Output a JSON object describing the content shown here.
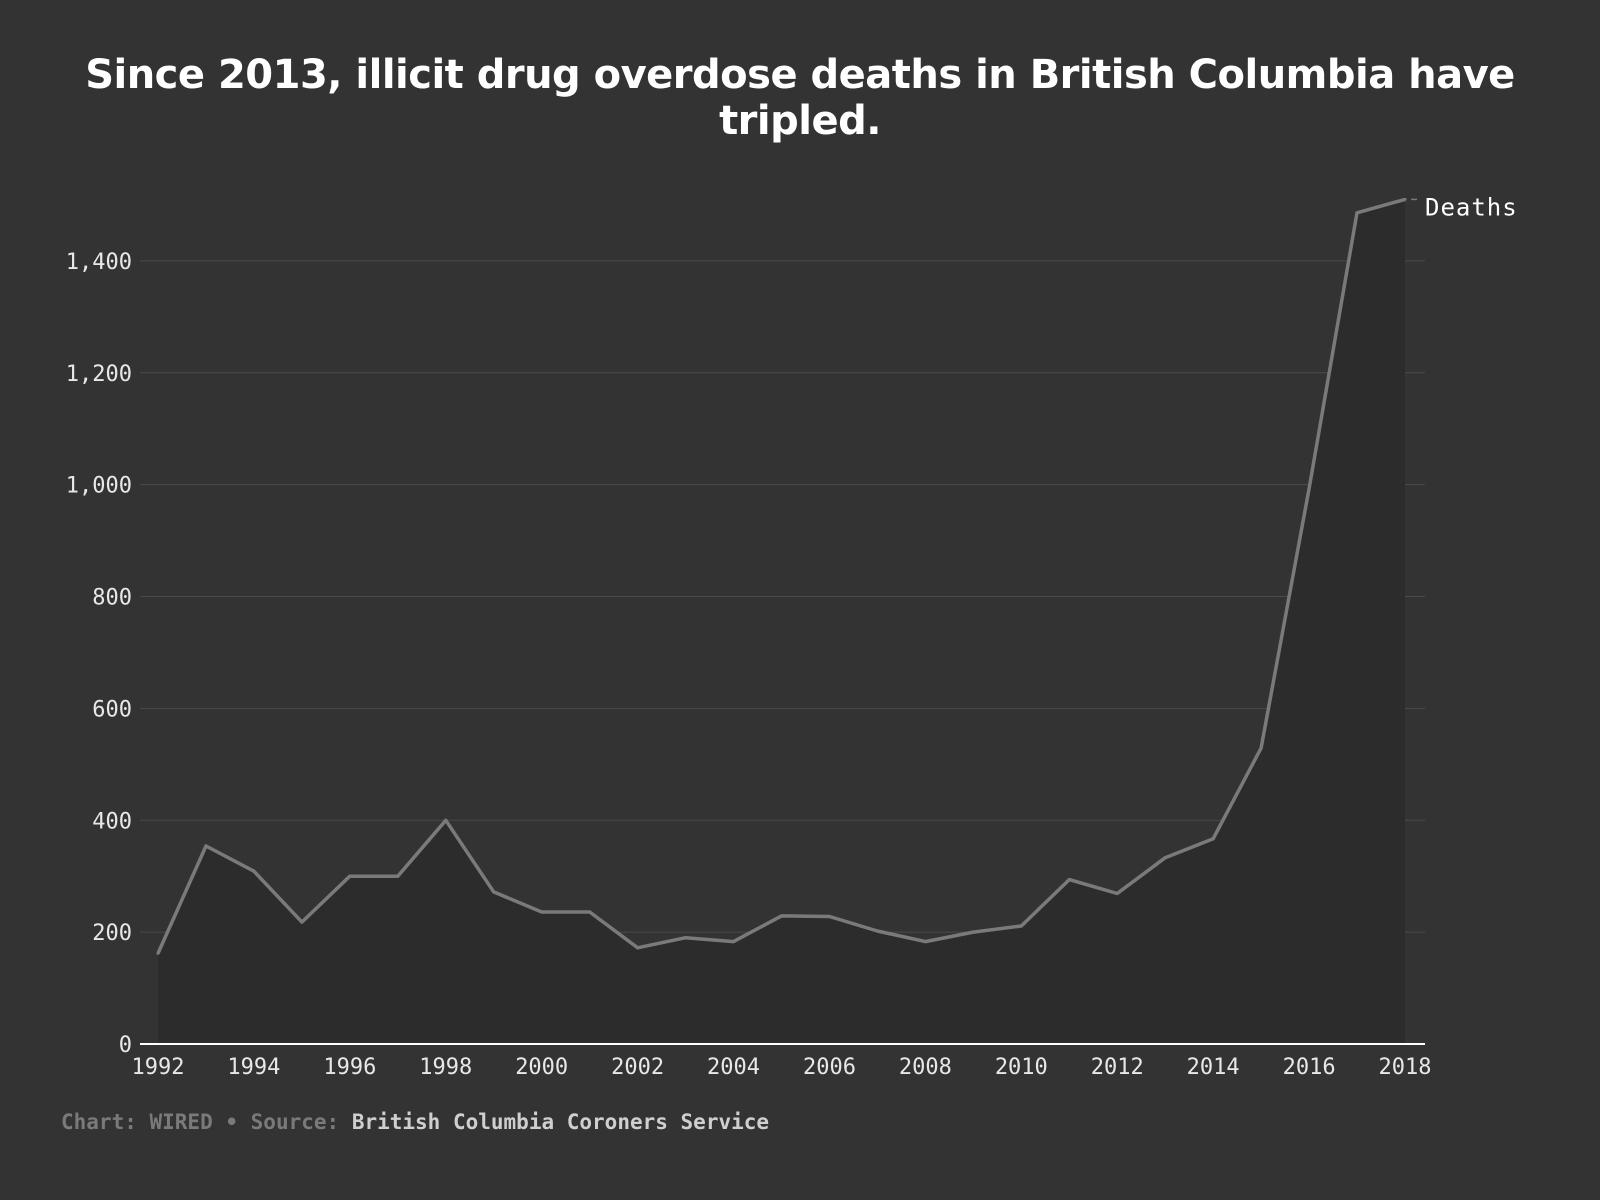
{
  "title": "Since 2013, illicit drug overdose deaths in British Columbia have tripled.",
  "footer": {
    "credit": "Chart: WIRED",
    "separator": " • ",
    "source_prefix": "Source: ",
    "source_name": "British Columbia Coroners Service"
  },
  "colors": {
    "background": "#333333",
    "line": "#7a7a7a",
    "area": "#2c2c2c",
    "grid": "#4a4a4a",
    "axis": "#ffffff"
  },
  "chart_data": {
    "type": "line",
    "title": "Since 2013, illicit drug overdose deaths in British Columbia have tripled.",
    "xlabel": "",
    "ylabel": "",
    "x": [
      1992,
      1993,
      1994,
      1995,
      1996,
      1997,
      1998,
      1999,
      2000,
      2001,
      2002,
      2003,
      2004,
      2005,
      2006,
      2007,
      2008,
      2009,
      2010,
      2011,
      2012,
      2013,
      2014,
      2015,
      2016,
      2017,
      2018
    ],
    "series": [
      {
        "name": "Deaths",
        "values": [
          162,
          354,
          309,
          218,
          300,
          300,
          400,
          272,
          236,
          236,
          172,
          190,
          183,
          229,
          228,
          202,
          183,
          200,
          211,
          294,
          269,
          333,
          367,
          529,
          993,
          1486,
          1510
        ]
      }
    ],
    "xlim": [
      1992,
      2018
    ],
    "ylim": [
      0,
      1500
    ],
    "x_ticks": [
      "1992",
      "1994",
      "1996",
      "1998",
      "2000",
      "2002",
      "2004",
      "2006",
      "2008",
      "2010",
      "2012",
      "2014",
      "2016",
      "2018"
    ],
    "y_ticks": [
      "0",
      "200",
      "400",
      "600",
      "800",
      "1,000",
      "1,200",
      "1,400"
    ],
    "grid": true,
    "legend": "end-of-line label"
  }
}
